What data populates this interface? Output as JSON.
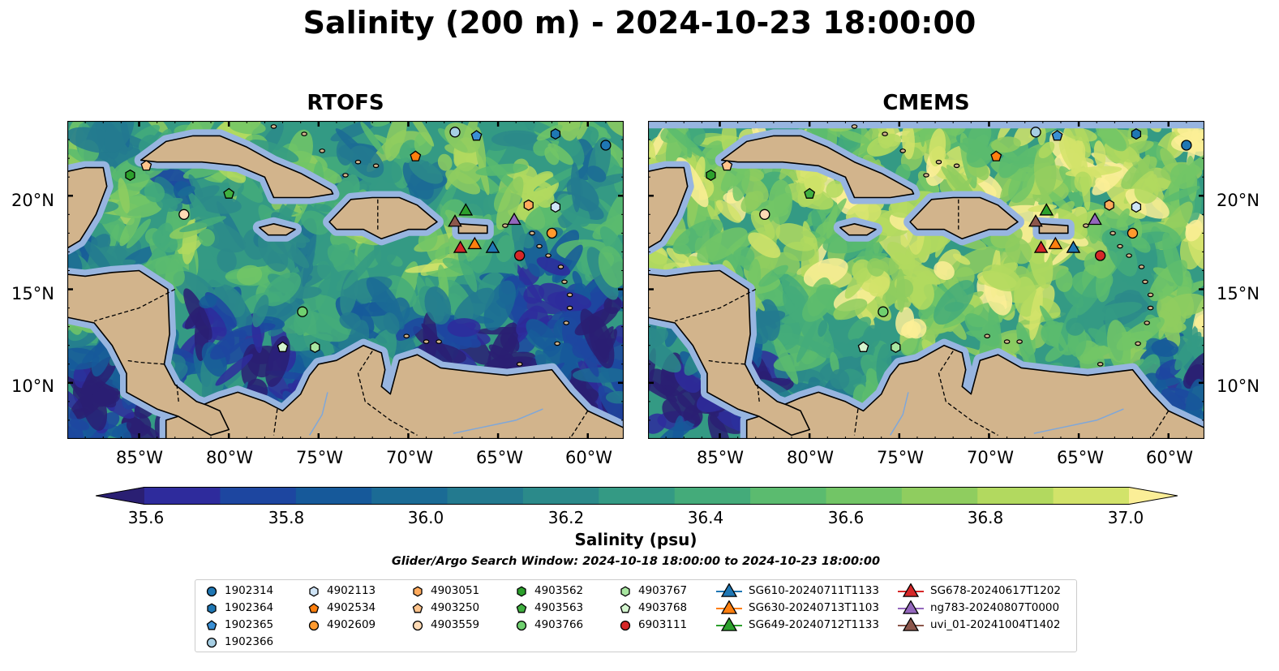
{
  "title": "Salinity (200 m) - 2024-10-23 18:00:00",
  "panels": [
    {
      "title": "RTOFS"
    },
    {
      "title": "CMEMS"
    }
  ],
  "axes": {
    "lon_labels": [
      "85°W",
      "80°W",
      "75°W",
      "70°W",
      "65°W",
      "60°W"
    ],
    "lon_values": [
      -85,
      -80,
      -75,
      -70,
      -65,
      -60
    ],
    "lat_labels": [
      "20°N",
      "15°N",
      "10°N"
    ],
    "lat_values": [
      20,
      15,
      10
    ],
    "lon_range": [
      -89,
      -58
    ],
    "lat_range": [
      7,
      24
    ]
  },
  "colorbar": {
    "label": "Salinity (psu)",
    "ticks": [
      "35.6",
      "35.8",
      "36.0",
      "36.2",
      "36.4",
      "36.6",
      "36.8",
      "37.0"
    ],
    "tick_values": [
      35.6,
      35.8,
      36.0,
      36.2,
      36.4,
      36.6,
      36.8,
      37.0
    ],
    "range": [
      35.6,
      37.0
    ],
    "colors": [
      "#2a1f73",
      "#2e2b9c",
      "#1d46a0",
      "#16599a",
      "#1b6b95",
      "#237a8f",
      "#2b8a8a",
      "#349a84",
      "#44ab7a",
      "#5bbb6f",
      "#72c566",
      "#8fcd5f",
      "#b2d95f",
      "#d2e36a",
      "#fbee97"
    ],
    "extend": "both"
  },
  "search_window": "Glider/Argo Search Window: 2024-10-18 18:00:00 to 2024-10-23 18:00:00",
  "colors": {
    "land": "#d2b48c",
    "shallow": "#97b5e0"
  },
  "legend": [
    {
      "label": "1902314",
      "marker": "circle",
      "color": "#1f77b4"
    },
    {
      "label": "1902364",
      "marker": "hexagon",
      "color": "#1f77b4"
    },
    {
      "label": "1902365",
      "marker": "pentagon",
      "color": "#3a8fd4"
    },
    {
      "label": "1902366",
      "marker": "circle",
      "color": "#a6cee3"
    },
    {
      "label": "4902113",
      "marker": "hexagon",
      "color": "#cfe4f6"
    },
    {
      "label": "4902534",
      "marker": "pentagon",
      "color": "#ff7f0e"
    },
    {
      "label": "4902609",
      "marker": "circle",
      "color": "#ff9a2e"
    },
    {
      "label": "4903051",
      "marker": "hexagon",
      "color": "#ffaa5c"
    },
    {
      "label": "4903250",
      "marker": "pentagon",
      "color": "#ffc48c"
    },
    {
      "label": "4903559",
      "marker": "circle",
      "color": "#ffdbb5"
    },
    {
      "label": "4903562",
      "marker": "hexagon",
      "color": "#2ca02c"
    },
    {
      "label": "4903563",
      "marker": "pentagon",
      "color": "#40b040"
    },
    {
      "label": "4903766",
      "marker": "circle",
      "color": "#6fd06f"
    },
    {
      "label": "4903767",
      "marker": "hexagon",
      "color": "#a8e6a0"
    },
    {
      "label": "4903768",
      "marker": "pentagon",
      "color": "#d4f5cf"
    },
    {
      "label": "6903111",
      "marker": "circle",
      "color": "#d62728"
    },
    {
      "label": "SG610-20240711T1133",
      "marker": "triangle-line",
      "color": "#1f77b4"
    },
    {
      "label": "SG630-20240713T1103",
      "marker": "triangle-line",
      "color": "#ff7f0e"
    },
    {
      "label": "SG649-20240712T1133",
      "marker": "triangle-line",
      "color": "#2ca02c"
    },
    {
      "label": "SG678-20240617T1202",
      "marker": "triangle-line",
      "color": "#d62728"
    },
    {
      "label": "ng783-20240807T0000",
      "marker": "triangle-line",
      "color": "#9467bd"
    },
    {
      "label": "uvi_01-20241004T1402",
      "marker": "triangle-line",
      "color": "#8c564b"
    }
  ],
  "platforms": [
    {
      "id": "1902314",
      "lon": -59.0,
      "lat": 22.7
    },
    {
      "id": "1902364",
      "lon": -61.8,
      "lat": 23.3
    },
    {
      "id": "1902365",
      "lon": -66.2,
      "lat": 23.2
    },
    {
      "id": "1902366",
      "lon": -67.4,
      "lat": 23.4
    },
    {
      "id": "4902113",
      "lon": -61.8,
      "lat": 19.4
    },
    {
      "id": "4902534",
      "lon": -69.6,
      "lat": 22.1
    },
    {
      "id": "4902609",
      "lon": -62.0,
      "lat": 18.0
    },
    {
      "id": "4903051",
      "lon": -63.3,
      "lat": 19.5
    },
    {
      "id": "4903250",
      "lon": -84.6,
      "lat": 21.6
    },
    {
      "id": "4903559",
      "lon": -82.5,
      "lat": 19.0
    },
    {
      "id": "4903562",
      "lon": -85.5,
      "lat": 21.1
    },
    {
      "id": "4903563",
      "lon": -80.0,
      "lat": 20.1
    },
    {
      "id": "4903766",
      "lon": -75.9,
      "lat": 13.8
    },
    {
      "id": "4903767",
      "lon": -75.2,
      "lat": 11.9
    },
    {
      "id": "4903768",
      "lon": -77.0,
      "lat": 11.9
    },
    {
      "id": "6903111",
      "lon": -63.8,
      "lat": 16.8
    },
    {
      "id": "SG610-20240711T1133",
      "lon": -65.3,
      "lat": 17.2
    },
    {
      "id": "SG630-20240713T1103",
      "lon": -66.3,
      "lat": 17.4
    },
    {
      "id": "SG649-20240712T1133",
      "lon": -66.8,
      "lat": 19.2
    },
    {
      "id": "SG678-20240617T1202",
      "lon": -67.1,
      "lat": 17.2
    },
    {
      "id": "ng783-20240807T0000",
      "lon": -64.1,
      "lat": 18.7
    },
    {
      "id": "uvi_01-20241004T1402",
      "lon": -67.4,
      "lat": 18.6
    }
  ]
}
